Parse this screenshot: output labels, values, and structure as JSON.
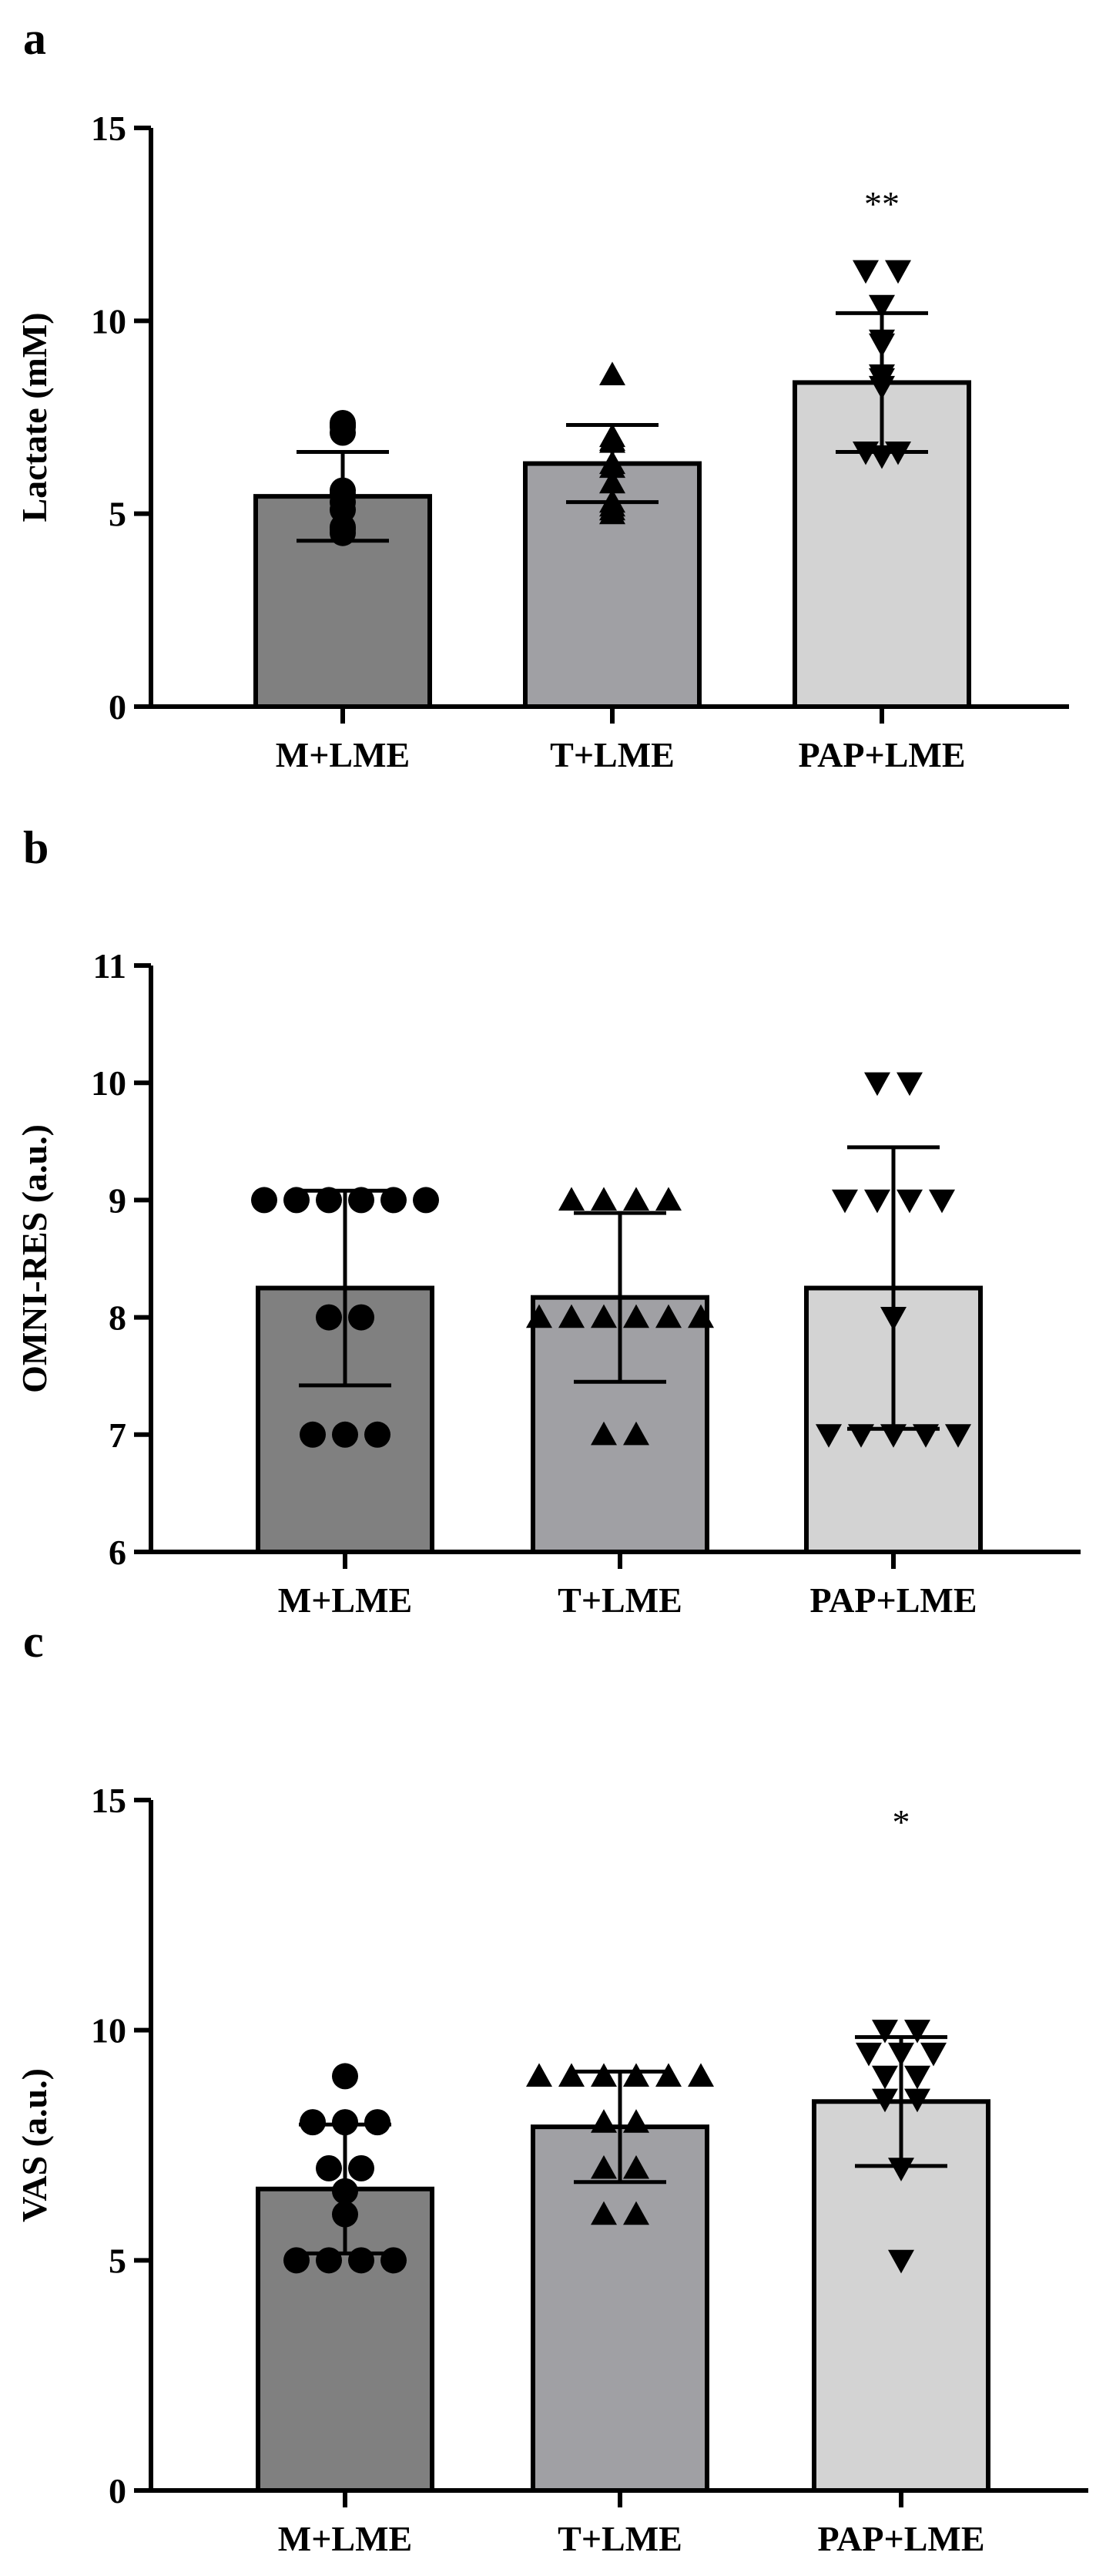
{
  "chart_data": [
    {
      "type": "bar",
      "panel": "a",
      "categories": [
        "M+LME",
        "T+LME",
        "PAP+LME"
      ],
      "ylabel": "Lactate (mM)",
      "ylim": [
        0,
        15
      ],
      "yticks": [
        0,
        5,
        10,
        15
      ],
      "series": [
        {
          "values": [
            5.45,
            6.3,
            8.4
          ],
          "sd": [
            1.15,
            1.0,
            1.8
          ],
          "colors": [
            "#808080",
            "#a0a0a4",
            "#d3d3d3"
          ],
          "markers": [
            "circle",
            "triangle-up",
            "triangle-down"
          ]
        }
      ],
      "points": [
        [
          7.35,
          7.3,
          7.25,
          7.1,
          5.6,
          5.5,
          5.3,
          5.1,
          4.65,
          4.6,
          4.5
        ],
        [
          8.6,
          7.0,
          6.9,
          6.85,
          6.3,
          6.2,
          5.8,
          5.3,
          5.2,
          5.1,
          5.0
        ],
        [
          11.3,
          11.3,
          10.4,
          9.5,
          9.4,
          8.6,
          8.5,
          8.3,
          6.6,
          6.6,
          6.5
        ]
      ],
      "annotations": [
        "",
        "",
        "**"
      ]
    },
    {
      "type": "bar",
      "panel": "b",
      "categories": [
        "M+LME",
        "T+LME",
        "PAP+LME"
      ],
      "ylabel": "OMNI-RES (a.u.)",
      "ylim": [
        6,
        11
      ],
      "yticks": [
        6,
        7,
        8,
        9,
        10,
        11
      ],
      "series": [
        {
          "values": [
            8.25,
            8.17,
            8.25
          ],
          "sd": [
            0.83,
            0.72,
            1.2
          ],
          "colors": [
            "#808080",
            "#a0a0a4",
            "#d3d3d3"
          ],
          "markers": [
            "circle",
            "triangle-up",
            "triangle-down"
          ]
        }
      ],
      "points": [
        [
          9,
          9,
          9,
          9,
          9,
          9,
          8,
          8,
          7,
          7,
          7
        ],
        [
          9,
          9,
          9,
          9,
          8,
          8,
          8,
          8,
          8,
          8,
          7,
          7
        ],
        [
          10,
          10,
          9,
          9,
          9,
          9,
          8,
          7,
          7,
          7,
          7,
          7
        ]
      ],
      "annotations": [
        "",
        "",
        ""
      ]
    },
    {
      "type": "bar",
      "panel": "c",
      "categories": [
        "M+LME",
        "T+LME",
        "PAP+LME"
      ],
      "ylabel": "VAS (a.u.)",
      "ylim": [
        0,
        15
      ],
      "yticks": [
        0,
        5,
        10,
        15
      ],
      "series": [
        {
          "values": [
            6.55,
            7.9,
            8.45
          ],
          "sd": [
            1.4,
            1.2,
            1.4
          ],
          "colors": [
            "#808080",
            "#a0a0a4",
            "#d3d3d3"
          ],
          "markers": [
            "circle",
            "triangle-up",
            "triangle-down"
          ]
        }
      ],
      "points": [
        [
          9,
          8,
          8,
          8,
          7,
          7,
          6.5,
          6,
          5,
          5,
          5,
          5
        ],
        [
          9,
          9,
          9,
          9,
          9,
          9,
          8,
          8,
          7,
          7,
          6,
          6
        ],
        [
          10,
          10,
          9.5,
          9.5,
          9.5,
          9,
          9,
          8.5,
          8.5,
          7,
          5
        ]
      ],
      "annotations": [
        "",
        "",
        "*"
      ]
    }
  ]
}
